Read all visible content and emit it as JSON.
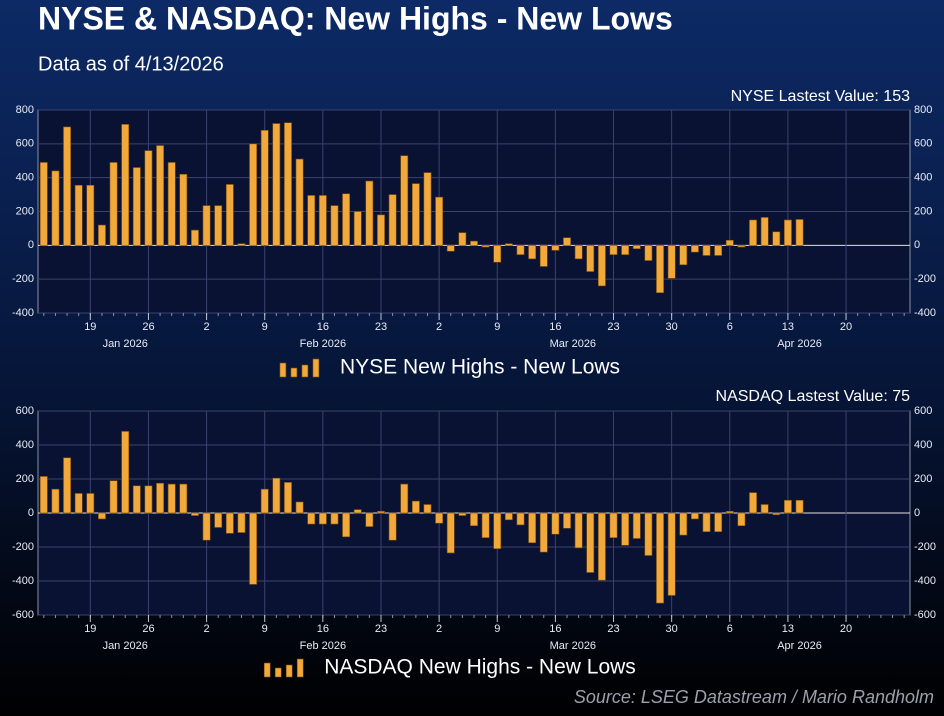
{
  "title": "NYSE & NASDAQ: New Highs - New Lows",
  "subtitle": "Data as of 4/13/2026",
  "source": "Source: LSEG Datastream / Mario Randholm",
  "chart_data": [
    {
      "type": "bar",
      "annotation": "NYSE Lastest Value: 153",
      "categories": [
        null,
        null,
        null,
        null,
        "19",
        null,
        null,
        null,
        null,
        "26",
        null,
        null,
        null,
        null,
        "2",
        null,
        null,
        null,
        null,
        "9",
        null,
        null,
        null,
        null,
        "16",
        null,
        null,
        null,
        null,
        "23",
        null,
        null,
        null,
        null,
        "2",
        null,
        null,
        null,
        null,
        "9",
        null,
        null,
        null,
        null,
        "16",
        null,
        null,
        null,
        null,
        "23",
        null,
        null,
        null,
        null,
        "30",
        null,
        null,
        null,
        null,
        "6",
        null,
        null,
        null,
        null,
        "13",
        null,
        null,
        null,
        null,
        "20",
        null,
        null,
        null,
        null,
        null
      ],
      "month_labels": [
        "Jan 2026",
        "Feb 2026",
        "Mar 2026",
        "Apr 2026"
      ],
      "series": [
        {
          "name": "NYSE New Highs - New Lows",
          "color": "#f2a93b",
          "values": [
            490,
            440,
            700,
            355,
            355,
            120,
            490,
            715,
            460,
            560,
            590,
            490,
            420,
            90,
            235,
            235,
            360,
            10,
            600,
            680,
            720,
            725,
            510,
            295,
            295,
            235,
            305,
            200,
            380,
            180,
            300,
            530,
            365,
            430,
            285,
            -35,
            75,
            25,
            -10,
            -100,
            10,
            -55,
            -80,
            -125,
            -30,
            45,
            -80,
            -155,
            -240,
            -55,
            -55,
            -20,
            -90,
            -280,
            -195,
            -115,
            -40,
            -60,
            -60,
            30,
            -10,
            150,
            165,
            80,
            150,
            153,
            null,
            null,
            null,
            null,
            null,
            null,
            null,
            null,
            null
          ]
        }
      ],
      "ylim": [
        -400,
        800
      ],
      "yticks": [
        -400,
        -200,
        0,
        200,
        400,
        600,
        800
      ],
      "grid": true
    },
    {
      "type": "bar",
      "annotation": "NASDAQ Lastest Value: 75",
      "categories": [
        null,
        null,
        null,
        null,
        "19",
        null,
        null,
        null,
        null,
        "26",
        null,
        null,
        null,
        null,
        "2",
        null,
        null,
        null,
        null,
        "9",
        null,
        null,
        null,
        null,
        "16",
        null,
        null,
        null,
        null,
        "23",
        null,
        null,
        null,
        null,
        "2",
        null,
        null,
        null,
        null,
        "9",
        null,
        null,
        null,
        null,
        "16",
        null,
        null,
        null,
        null,
        "23",
        null,
        null,
        null,
        null,
        "30",
        null,
        null,
        null,
        null,
        "6",
        null,
        null,
        null,
        null,
        "13",
        null,
        null,
        null,
        null,
        "20",
        null,
        null,
        null,
        null,
        null
      ],
      "month_labels": [
        "Jan 2026",
        "Feb 2026",
        "Mar 2026",
        "Apr 2026"
      ],
      "series": [
        {
          "name": "NASDAQ New Highs - New Lows",
          "color": "#f2a93b",
          "values": [
            215,
            140,
            325,
            115,
            115,
            -35,
            190,
            480,
            160,
            160,
            175,
            170,
            170,
            -15,
            -160,
            -85,
            -120,
            -115,
            -420,
            140,
            205,
            180,
            65,
            -65,
            -65,
            -65,
            -140,
            20,
            -80,
            10,
            -160,
            170,
            70,
            50,
            -60,
            -235,
            -15,
            -75,
            -145,
            -210,
            -40,
            -70,
            -175,
            -230,
            -125,
            -90,
            -205,
            -350,
            -395,
            -145,
            -190,
            -150,
            -250,
            -530,
            -485,
            -130,
            -35,
            -110,
            -110,
            10,
            -75,
            120,
            50,
            -10,
            75,
            75,
            null,
            null,
            null,
            null,
            null,
            null,
            null,
            null,
            null
          ]
        }
      ],
      "ylim": [
        -600,
        600
      ],
      "yticks": [
        -600,
        -400,
        -200,
        0,
        200,
        400,
        600
      ],
      "grid": true
    }
  ]
}
